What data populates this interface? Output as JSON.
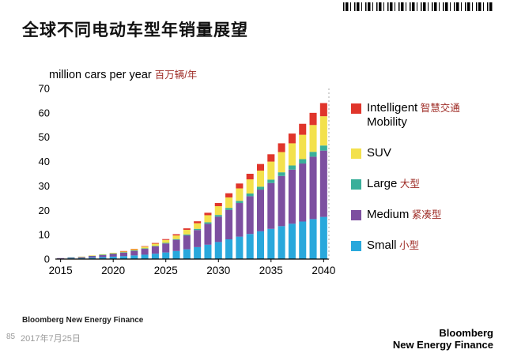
{
  "slide": {
    "title": "全球不同电动车型年销量展望",
    "page_number": "85",
    "date": "2017年7月25日",
    "source": "Bloomberg New Energy Finance",
    "logo": {
      "line1": "Bloomberg",
      "line2": "New Energy Finance"
    }
  },
  "chart_data": {
    "type": "bar",
    "stacked": true,
    "title": "全球不同电动车型年销量展望",
    "y_title_en": "million cars per year",
    "y_title_cn": "百万辆/年",
    "ylim": [
      0,
      70
    ],
    "y_ticks": [
      0,
      10,
      20,
      30,
      40,
      50,
      60,
      70
    ],
    "x": [
      2015,
      2016,
      2017,
      2018,
      2019,
      2020,
      2021,
      2022,
      2023,
      2024,
      2025,
      2026,
      2027,
      2028,
      2029,
      2030,
      2031,
      2032,
      2033,
      2034,
      2035,
      2036,
      2037,
      2038,
      2039,
      2040
    ],
    "x_ticks": [
      2015,
      2020,
      2025,
      2030,
      2035,
      2040
    ],
    "grid": false,
    "legend_position": "right",
    "cn_text_color": "#9e2b25",
    "series": [
      {
        "name": "Small",
        "name_cn": "小型",
        "color": "#29a8dc",
        "values": [
          0.2,
          0.3,
          0.4,
          0.6,
          0.8,
          1.0,
          1.2,
          1.5,
          1.8,
          2.2,
          2.7,
          3.3,
          4.0,
          4.9,
          5.9,
          7.0,
          8.1,
          9.2,
          10.3,
          11.4,
          12.4,
          13.5,
          14.5,
          15.4,
          16.4,
          17.3
        ]
      },
      {
        "name": "Medium",
        "name_cn": "紧凑型",
        "color": "#7d4fa0",
        "values": [
          0.2,
          0.35,
          0.5,
          0.7,
          0.9,
          1.2,
          1.5,
          1.9,
          2.4,
          3.0,
          3.7,
          4.6,
          5.7,
          7.0,
          8.6,
          10.4,
          12.1,
          13.8,
          15.5,
          17.1,
          18.8,
          20.6,
          22.2,
          23.8,
          25.6,
          27.2
        ]
      },
      {
        "name": "Large",
        "name_cn": "大型",
        "color": "#3aaf9a",
        "values": [
          0.0,
          0.05,
          0.05,
          0.1,
          0.1,
          0.1,
          0.1,
          0.15,
          0.2,
          0.2,
          0.25,
          0.3,
          0.4,
          0.5,
          0.6,
          0.7,
          0.8,
          0.9,
          1.1,
          1.2,
          1.4,
          1.5,
          1.7,
          1.8,
          2.0,
          2.1
        ]
      },
      {
        "name": "SUV",
        "name_cn": "",
        "color": "#f3e14c",
        "values": [
          0.0,
          0.0,
          0.05,
          0.1,
          0.2,
          0.3,
          0.4,
          0.55,
          0.7,
          0.9,
          1.2,
          1.5,
          1.9,
          2.3,
          2.9,
          3.6,
          4.3,
          5.1,
          5.8,
          6.6,
          7.4,
          8.3,
          9.1,
          10.0,
          11.0,
          12.0
        ]
      },
      {
        "name": "Intelligent Mobility",
        "name_cn": "智慧交通",
        "color": "#e0352b",
        "values": [
          0.0,
          0.0,
          0.0,
          0.0,
          0.0,
          0.0,
          0.1,
          0.1,
          0.2,
          0.3,
          0.35,
          0.5,
          0.6,
          0.8,
          1.0,
          1.3,
          1.7,
          2.0,
          2.3,
          2.7,
          3.0,
          3.6,
          4.0,
          4.5,
          5.0,
          5.4
        ]
      }
    ],
    "legend_items": [
      {
        "en": "Intelligent",
        "cn": "智慧交通",
        "en2": "Mobility",
        "color": "#e0352b"
      },
      {
        "en": "SUV",
        "cn": "",
        "en2": "",
        "color": "#f3e14c"
      },
      {
        "en": "Large",
        "cn": "大型",
        "en2": "",
        "color": "#3aaf9a"
      },
      {
        "en": "Medium",
        "cn": "紧凑型",
        "en2": "",
        "color": "#7d4fa0"
      },
      {
        "en": "Small",
        "cn": "小型",
        "en2": "",
        "color": "#29a8dc"
      }
    ]
  }
}
